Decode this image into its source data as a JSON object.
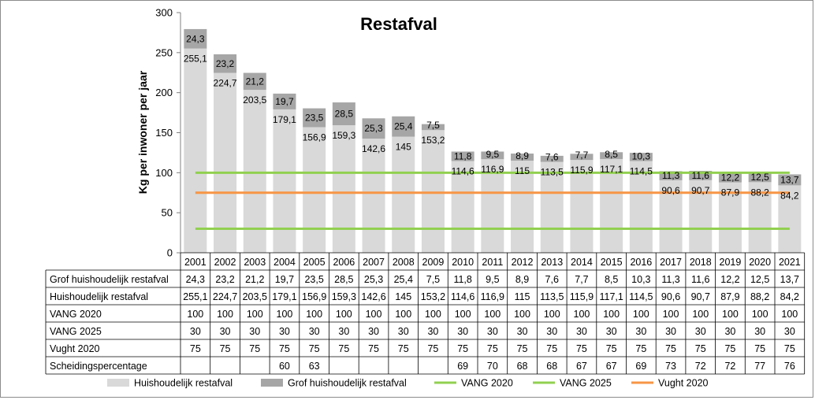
{
  "chart_data": {
    "type": "bar",
    "stacked": true,
    "title": "Restafval",
    "ylabel": "Kg per inwoner per jaar",
    "ylim": [
      0,
      300
    ],
    "yticks": [
      0,
      50,
      100,
      150,
      200,
      250,
      300
    ],
    "categories": [
      "2001",
      "2002",
      "2003",
      "2004",
      "2005",
      "2006",
      "2007",
      "2008",
      "2009",
      "2010",
      "2011",
      "2012",
      "2013",
      "2014",
      "2015",
      "2016",
      "2017",
      "2018",
      "2019",
      "2020",
      "2021"
    ],
    "colors": {
      "huishoudelijk": "#d9d9d9",
      "grof": "#a6a6a6",
      "vang2020": "#92d050",
      "vang2025": "#92d050",
      "vught2020": "#f79646"
    },
    "series": [
      {
        "key": "grof",
        "name": "Grof huishoudelijk restafval",
        "kind": "bar",
        "values": [
          24.3,
          23.2,
          21.2,
          19.7,
          23.5,
          28.5,
          25.3,
          25.4,
          7.5,
          11.8,
          9.5,
          8.9,
          7.6,
          7.7,
          8.5,
          10.3,
          11.3,
          11.6,
          12.2,
          12.5,
          13.7
        ],
        "labels": [
          "24,3",
          "23,2",
          "21,2",
          "19,7",
          "23,5",
          "28,5",
          "25,3",
          "25,4",
          "7,5",
          "11,8",
          "9,5",
          "8,9",
          "7,6",
          "7,7",
          "8,5",
          "10,3",
          "11,3",
          "11,6",
          "12,2",
          "12,5",
          "13,7"
        ]
      },
      {
        "key": "huishoudelijk",
        "name": "Huishoudelijk restafval",
        "kind": "bar",
        "values": [
          255.1,
          224.7,
          203.5,
          179.1,
          156.9,
          159.3,
          142.6,
          145,
          153.2,
          114.6,
          116.9,
          115,
          113.5,
          115.9,
          117.1,
          114.5,
          90.6,
          90.7,
          87.9,
          88.2,
          84.2
        ],
        "labels": [
          "255,1",
          "224,7",
          "203,5",
          "179,1",
          "156,9",
          "159,3",
          "142,6",
          "145",
          "153,2",
          "114,6",
          "116,9",
          "115",
          "113,5",
          "115,9",
          "117,1",
          "114,5",
          "90,6",
          "90,7",
          "87,9",
          "88,2",
          "84,2"
        ]
      },
      {
        "key": "vang2020",
        "name": "VANG 2020",
        "kind": "line",
        "values": [
          100,
          100,
          100,
          100,
          100,
          100,
          100,
          100,
          100,
          100,
          100,
          100,
          100,
          100,
          100,
          100,
          100,
          100,
          100,
          100,
          100
        ],
        "labels": [
          "100",
          "100",
          "100",
          "100",
          "100",
          "100",
          "100",
          "100",
          "100",
          "100",
          "100",
          "100",
          "100",
          "100",
          "100",
          "100",
          "100",
          "100",
          "100",
          "100",
          "100"
        ]
      },
      {
        "key": "vang2025",
        "name": "VANG 2025",
        "kind": "line",
        "values": [
          30,
          30,
          30,
          30,
          30,
          30,
          30,
          30,
          30,
          30,
          30,
          30,
          30,
          30,
          30,
          30,
          30,
          30,
          30,
          30,
          30
        ],
        "labels": [
          "30",
          "30",
          "30",
          "30",
          "30",
          "30",
          "30",
          "30",
          "30",
          "30",
          "30",
          "30",
          "30",
          "30",
          "30",
          "30",
          "30",
          "30",
          "30",
          "30",
          "30"
        ]
      },
      {
        "key": "vught2020",
        "name": "Vught 2020",
        "kind": "line",
        "values": [
          75,
          75,
          75,
          75,
          75,
          75,
          75,
          75,
          75,
          75,
          75,
          75,
          75,
          75,
          75,
          75,
          75,
          75,
          75,
          75,
          75
        ],
        "labels": [
          "75",
          "75",
          "75",
          "75",
          "75",
          "75",
          "75",
          "75",
          "75",
          "75",
          "75",
          "75",
          "75",
          "75",
          "75",
          "75",
          "75",
          "75",
          "75",
          "75",
          "75"
        ]
      },
      {
        "key": "scheiding",
        "name": "Scheidingspercentage",
        "kind": "table",
        "values": [
          null,
          null,
          null,
          60,
          63,
          null,
          null,
          null,
          null,
          69,
          70,
          68,
          68,
          67,
          67,
          69,
          73,
          72,
          72,
          77,
          76
        ],
        "labels": [
          "",
          "",
          "",
          "60",
          "63",
          "",
          "",
          "",
          "",
          "69",
          "70",
          "68",
          "68",
          "67",
          "67",
          "69",
          "73",
          "72",
          "72",
          "77",
          "76"
        ]
      }
    ],
    "legend": {
      "placement": "bottom",
      "order": [
        "huishoudelijk",
        "grof",
        "vang2020",
        "vang2025",
        "vught2020"
      ],
      "labels": [
        "Huishoudelijk restafval",
        "Grof huishoudelijk restafval",
        "VANG 2020",
        "VANG 2025",
        "Vught 2020"
      ]
    },
    "grid": false,
    "data_table": true
  }
}
